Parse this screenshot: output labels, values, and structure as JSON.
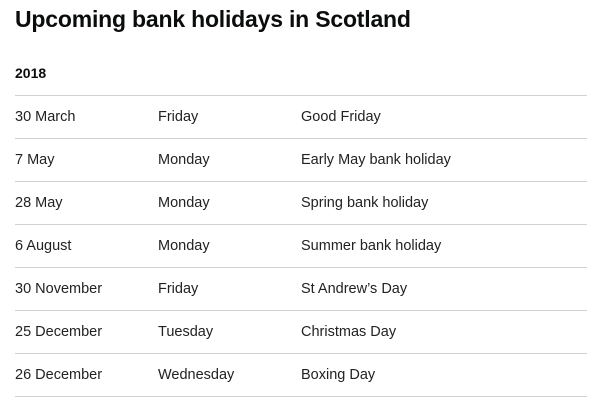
{
  "title": "Upcoming bank holidays in Scotland",
  "year": "2018",
  "holidays": [
    {
      "date": "30 March",
      "day": "Friday",
      "name": "Good Friday"
    },
    {
      "date": "7 May",
      "day": "Monday",
      "name": "Early May bank holiday"
    },
    {
      "date": "28 May",
      "day": "Monday",
      "name": "Spring bank holiday"
    },
    {
      "date": "6 August",
      "day": "Monday",
      "name": "Summer bank holiday"
    },
    {
      "date": "30 November",
      "day": "Friday",
      "name": "St Andrew’s Day"
    },
    {
      "date": "25 December",
      "day": "Tuesday",
      "name": "Christmas Day"
    },
    {
      "date": "26 December",
      "day": "Wednesday",
      "name": "Boxing Day"
    }
  ]
}
